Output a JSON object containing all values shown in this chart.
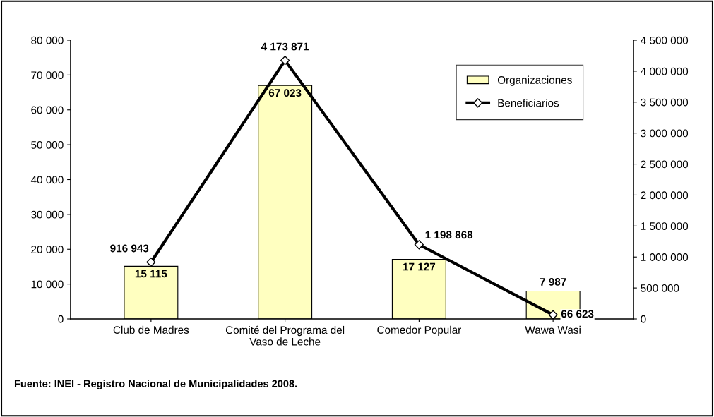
{
  "chart_data": {
    "type": "bar",
    "categories": [
      "Club de Madres",
      "Comité del Programa del\nVaso de Leche",
      "Comedor Popular",
      "Wawa Wasi"
    ],
    "series": [
      {
        "name": "Organizaciones",
        "color": "#ffffc0",
        "values": [
          15115,
          67023,
          17127,
          7987
        ],
        "value_labels": [
          "15 115",
          "67 023",
          "17 127",
          "7 987"
        ]
      },
      {
        "name": "Beneficiarios",
        "type": "line",
        "axis": "y2",
        "color": "#000000",
        "marker": "diamond",
        "values": [
          916943,
          4173871,
          1198868,
          66623
        ],
        "value_labels": [
          "916 943",
          "4 173 871",
          "1 198 868",
          "66 623"
        ]
      }
    ],
    "ylim": [
      0,
      80000
    ],
    "yticks": [
      0,
      {
        "value": 10000,
        "label": "10 000"
      },
      {
        "value": 20000,
        "label": "20 000"
      },
      {
        "value": 30000,
        "label": "30 000"
      },
      {
        "value": 40000,
        "label": "40 000"
      },
      {
        "value": 50000,
        "label": "50 000"
      },
      {
        "value": 60000,
        "label": "60 000"
      },
      {
        "value": 70000,
        "label": "70 000"
      },
      {
        "value": 80000,
        "label": "80 000"
      }
    ],
    "y2lim": [
      0,
      4500000
    ],
    "y2ticks": [
      0,
      {
        "value": 500000,
        "label": "500 000"
      },
      {
        "value": 1000000,
        "label": "1 000 000"
      },
      {
        "value": 1500000,
        "label": "1 500 000"
      },
      {
        "value": 2000000,
        "label": "2 000 000"
      },
      {
        "value": 2500000,
        "label": "2 500 000"
      },
      {
        "value": 3000000,
        "label": "3 000 000"
      },
      {
        "value": 3500000,
        "label": "3 500 000"
      },
      {
        "value": 4000000,
        "label": "4 000 000"
      },
      {
        "value": 4500000,
        "label": "4 500 000"
      }
    ],
    "legend": "top right",
    "grid": false,
    "annotations": [
      "Fuente: INEI - Registro Nacional de Municipalidades 2008."
    ]
  }
}
